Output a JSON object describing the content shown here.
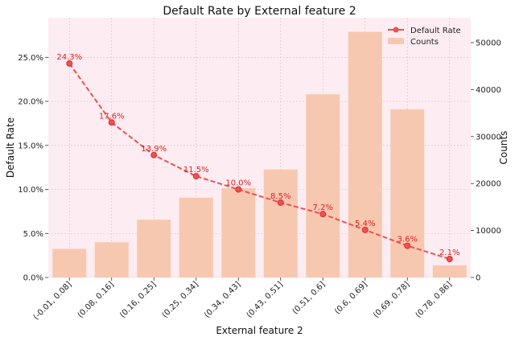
{
  "chart_data": {
    "type": "bar",
    "title": "Default Rate by External feature 2",
    "xlabel": "External feature 2",
    "ylabel_left": "Default Rate",
    "ylabel_right": "Counts",
    "categories": [
      "(-0.01, 0.08]",
      "(0.08, 0.16]",
      "(0.16, 0.25]",
      "(0.25, 0.34]",
      "(0.34, 0.43]",
      "(0.43, 0.51]",
      "(0.51, 0.6]",
      "(0.6, 0.69]",
      "(0.69, 0.78]",
      "(0.78, 0.86]"
    ],
    "series": [
      {
        "name": "Default Rate",
        "type": "line",
        "axis": "left",
        "values": [
          24.3,
          17.6,
          13.9,
          11.5,
          10.0,
          8.5,
          7.2,
          5.4,
          3.6,
          2.1
        ],
        "labels": [
          "24.3%",
          "17.6%",
          "13.9%",
          "11.5%",
          "10.0%",
          "8.5%",
          "7.2%",
          "5.4%",
          "3.6%",
          "2.1%"
        ],
        "color": "#f05050"
      },
      {
        "name": "Counts",
        "type": "bar",
        "axis": "right",
        "values": [
          6100,
          7500,
          12300,
          17000,
          19000,
          23000,
          39000,
          52300,
          35800,
          2600
        ],
        "color": "#f7c8b0"
      }
    ],
    "ylim_left": [
      0,
      29.5
    ],
    "yticks_left": [
      0,
      5,
      10,
      15,
      20,
      25
    ],
    "ytick_labels_left": [
      "0.0%",
      "5.0%",
      "10.0%",
      "15.0%",
      "20.0%",
      "25.0%"
    ],
    "ylim_right": [
      0,
      55300
    ],
    "yticks_right": [
      0,
      10000,
      20000,
      30000,
      40000,
      50000
    ],
    "ytick_labels_right": [
      "0",
      "10000",
      "20000",
      "30000",
      "40000",
      "50000"
    ],
    "grid": true,
    "legend_position": "top-right",
    "colors": {
      "plot_background": "#fdedf2",
      "grid": "#c8c8c8",
      "line": "#f05050",
      "label": "#e02020",
      "bar": "#f7c8b0"
    }
  }
}
